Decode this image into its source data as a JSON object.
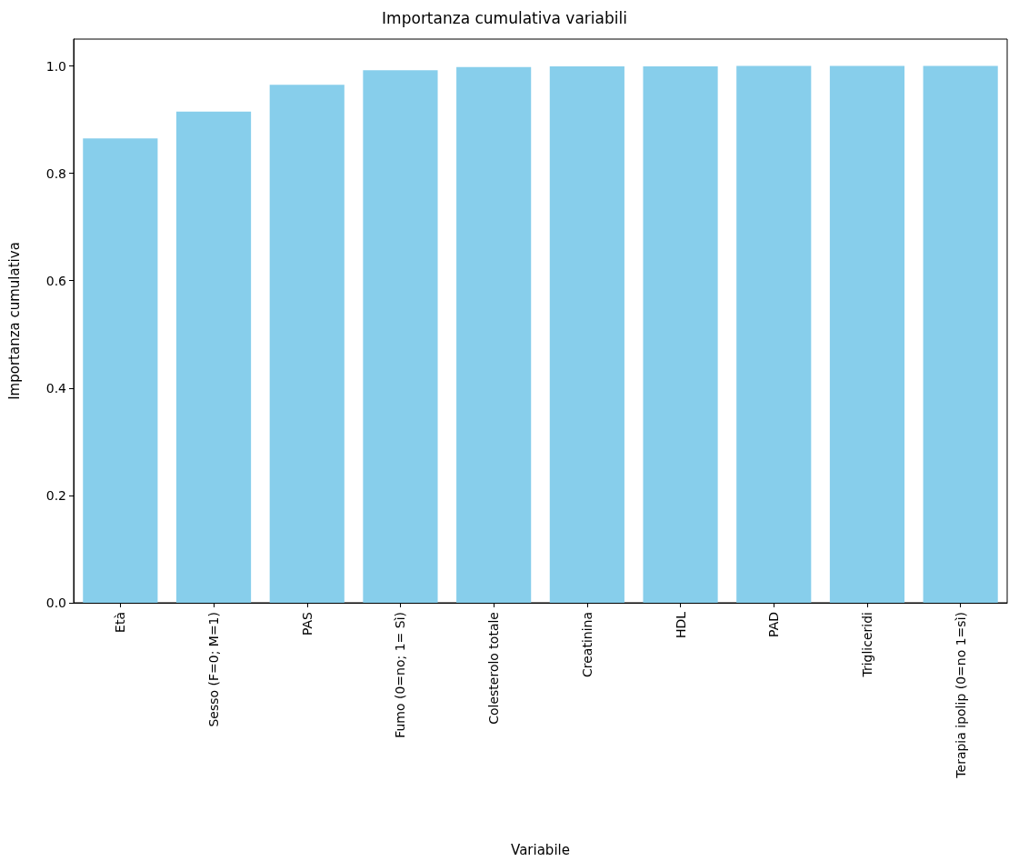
{
  "chart_data": {
    "type": "bar",
    "title": "Importanza cumulativa variabili",
    "xlabel": "Variabile",
    "ylabel": "Importanza cumulativa",
    "categories": [
      "Età",
      "Sesso (F=0; M=1)",
      "PAS",
      "Fumo (0=no; 1= Sì)",
      "Colesterolo totale",
      "Creatinina",
      "HDL",
      "PAD",
      "Trigliceridi",
      "Terapia ipolip (0=no 1=sì)"
    ],
    "values": [
      0.865,
      0.915,
      0.965,
      0.992,
      0.998,
      0.999,
      0.999,
      1.0,
      1.0,
      1.0
    ],
    "color": "#87ceeb",
    "ylim": [
      0,
      1.05
    ],
    "yticks": [
      {
        "value": 0,
        "label": "0.0"
      },
      {
        "value": 0.2,
        "label": "0.2"
      },
      {
        "value": 0.4,
        "label": "0.4"
      },
      {
        "value": 0.6,
        "label": "0.6"
      },
      {
        "value": 0.8,
        "label": "0.8"
      },
      {
        "value": 1,
        "label": "1.0"
      }
    ],
    "grid": false
  }
}
